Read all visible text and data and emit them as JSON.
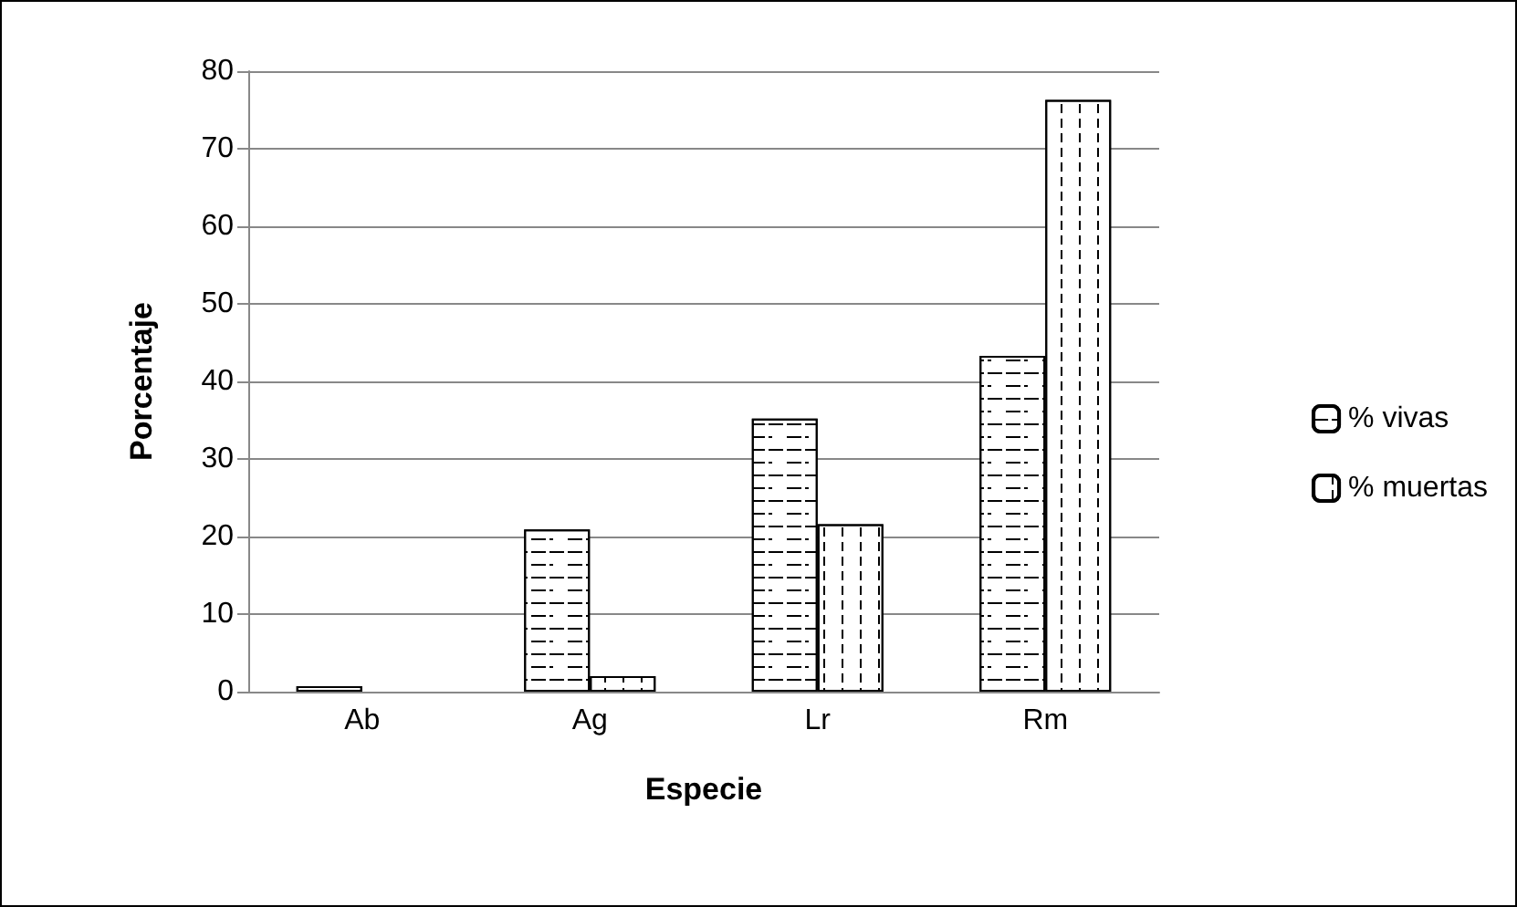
{
  "chart_data": {
    "type": "bar",
    "xlabel": "Especie",
    "ylabel": "Porcentaje",
    "categories": [
      "Ab",
      "Ag",
      "Lr",
      "Rm"
    ],
    "series": [
      {
        "name": "% vivas",
        "color": "#ffffff",
        "values": [
          0.7,
          20.9,
          35.2,
          43.3
        ]
      },
      {
        "name": "% muertas",
        "color": "#ffffff",
        "values": [
          0,
          2.0,
          21.6,
          76.3
        ]
      }
    ],
    "ylim": [
      0,
      80
    ],
    "yticks": [
      0,
      10,
      20,
      30,
      40,
      50,
      60,
      70,
      80
    ],
    "grid": "y",
    "legend": "right"
  }
}
